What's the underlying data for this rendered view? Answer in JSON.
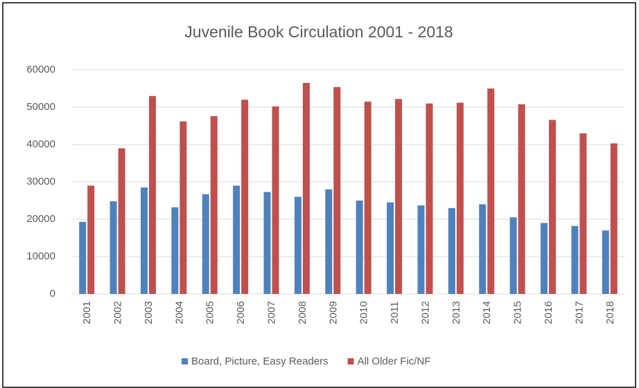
{
  "chart_data": {
    "type": "bar",
    "title": "Juvenile Book Circulation 2001 - 2018",
    "categories": [
      "2001",
      "2002",
      "2003",
      "2004",
      "2005",
      "2006",
      "2007",
      "2008",
      "2009",
      "2010",
      "2011",
      "2012",
      "2013",
      "2014",
      "2015",
      "2016",
      "2017",
      "2018"
    ],
    "series": [
      {
        "name": "Board, Picture, Easy Readers",
        "color": "#4f81bd",
        "values": [
          19300,
          24800,
          28500,
          23200,
          26700,
          29000,
          27300,
          26000,
          28000,
          25000,
          24500,
          23700,
          23000,
          24000,
          20500,
          19000,
          18200,
          17000
        ]
      },
      {
        "name": "All Older Fic/NF",
        "color": "#c0504d",
        "values": [
          29000,
          39000,
          53000,
          46200,
          47600,
          52000,
          50200,
          56500,
          55400,
          51500,
          52200,
          51000,
          51200,
          55000,
          50800,
          46600,
          43000,
          40300
        ]
      }
    ],
    "ylim": [
      0,
      60000
    ],
    "yticks": [
      0,
      10000,
      20000,
      30000,
      40000,
      50000,
      60000
    ],
    "grid": true,
    "legend": "bottom"
  }
}
